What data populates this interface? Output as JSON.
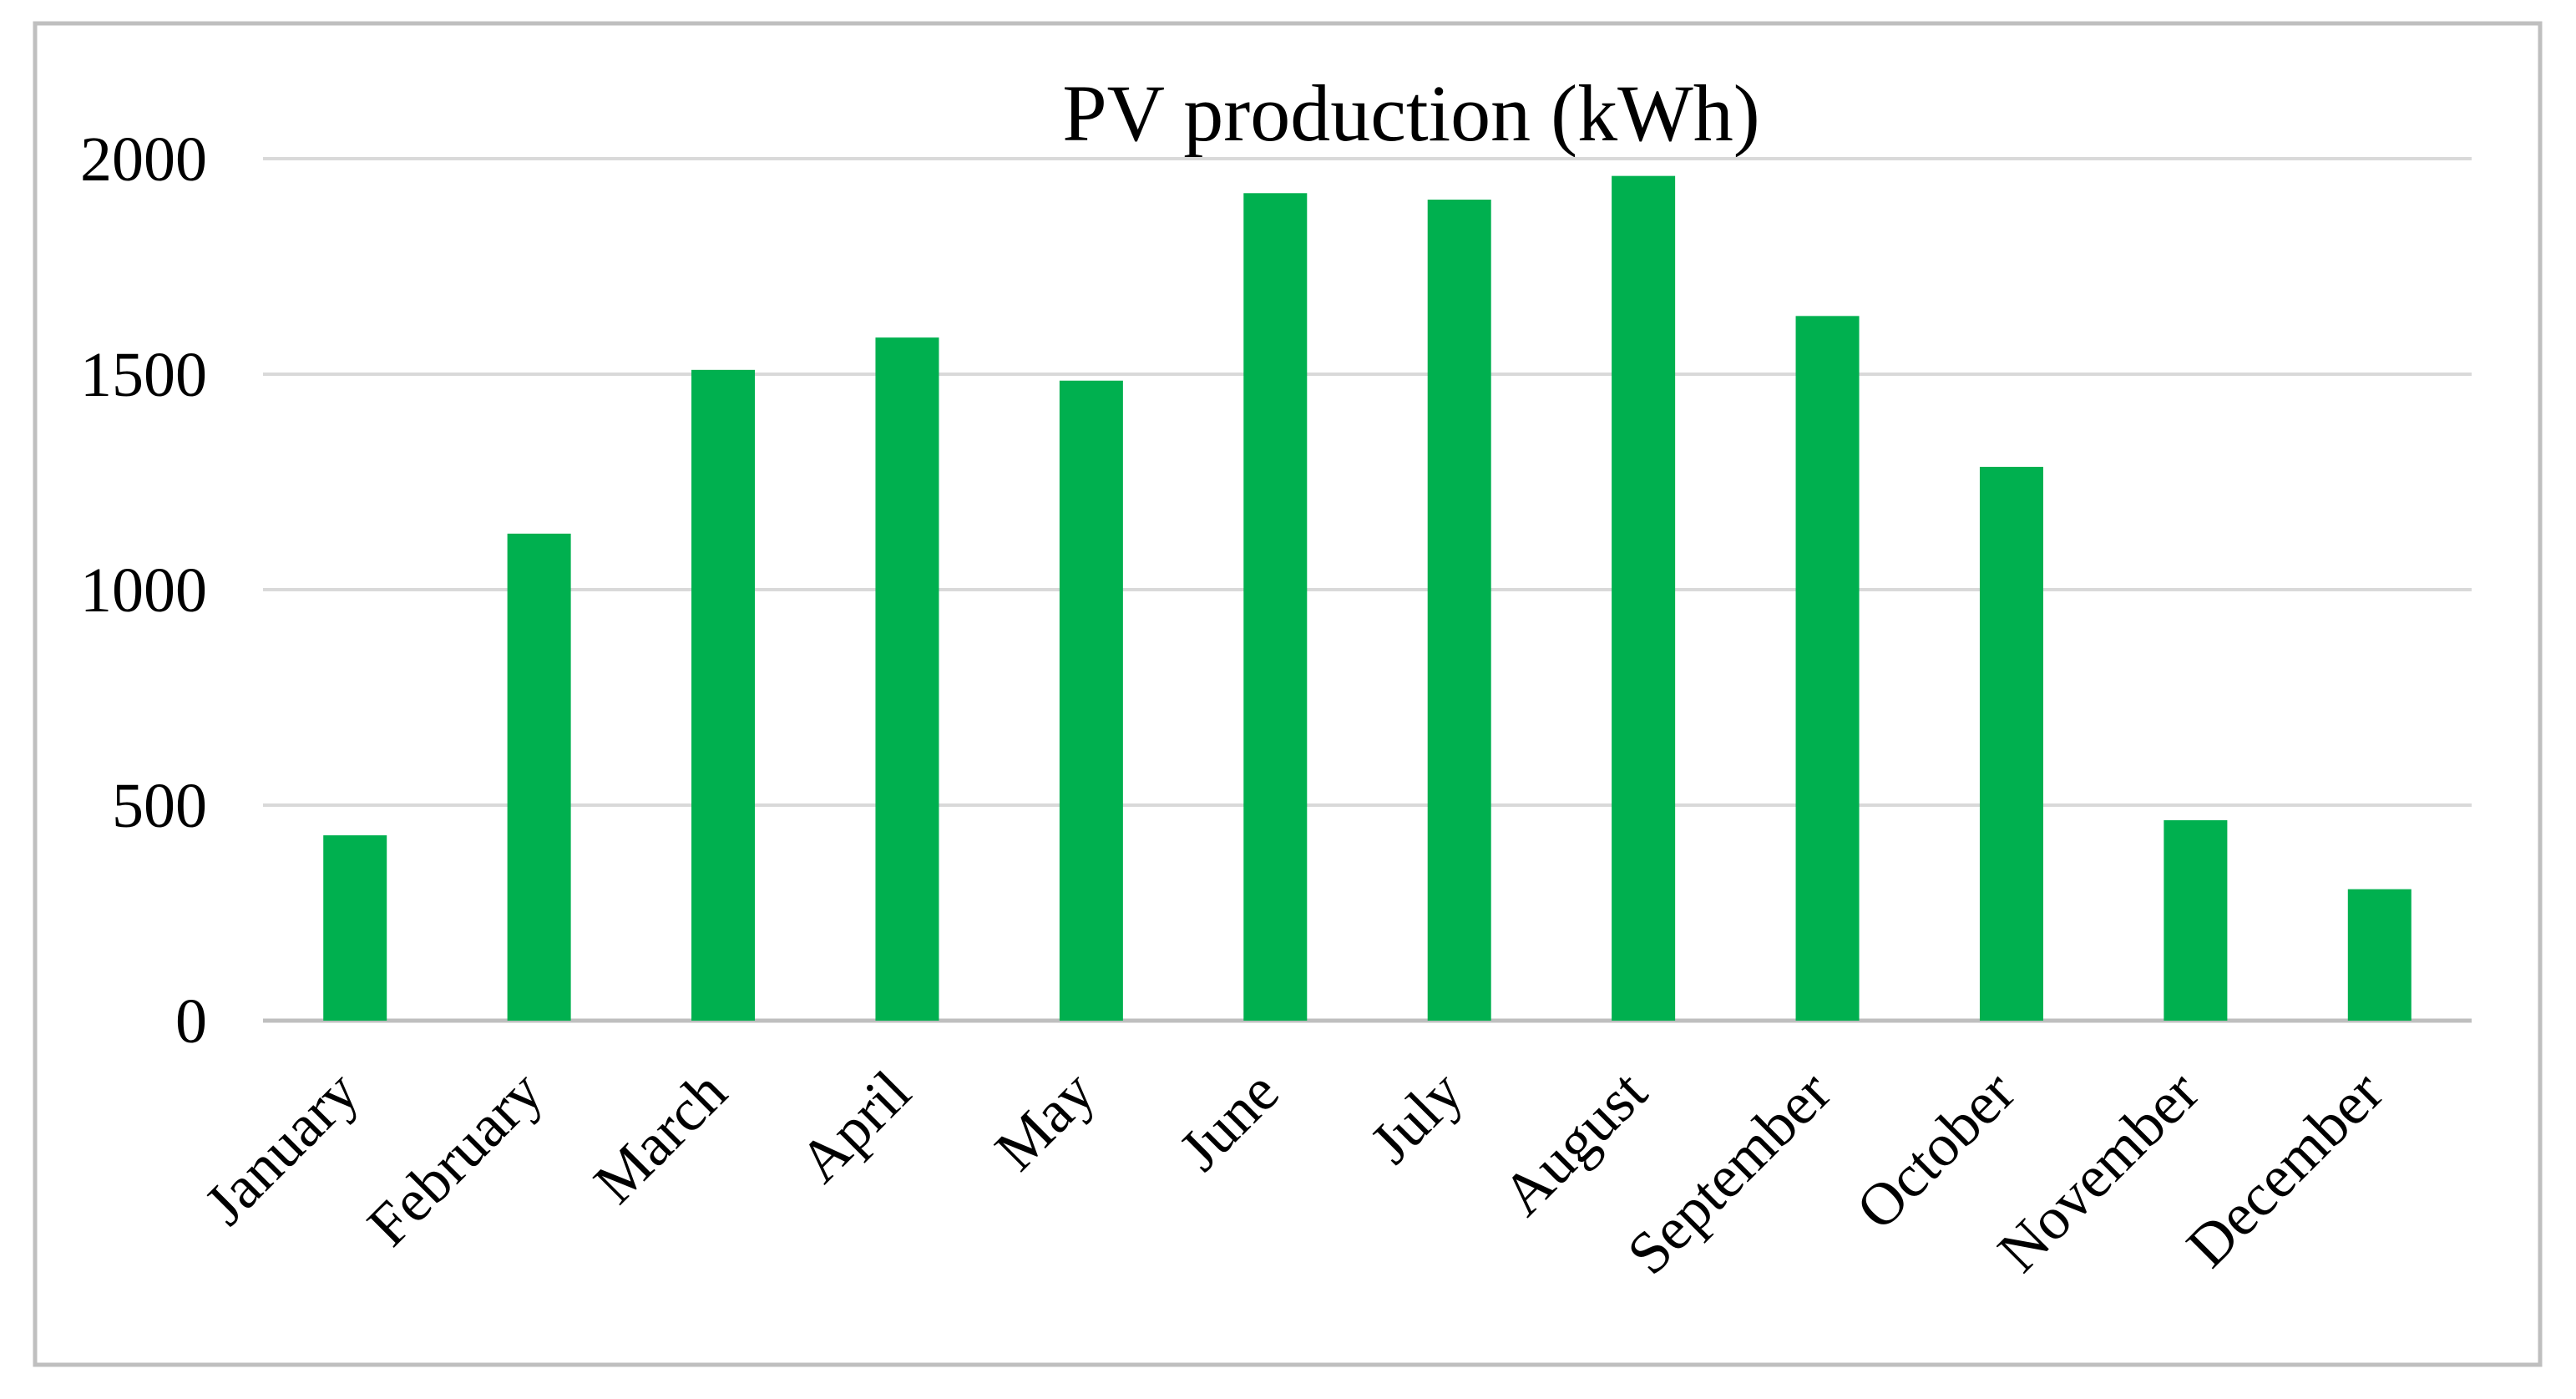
{
  "chart_data": {
    "type": "bar",
    "title": "PV production (kWh)",
    "xlabel": "",
    "ylabel": "",
    "categories": [
      "January",
      "February",
      "March",
      "April",
      "May",
      "June",
      "July",
      "August",
      "September",
      "October",
      "November",
      "December"
    ],
    "values": [
      430,
      1130,
      1510,
      1585,
      1485,
      1920,
      1905,
      1960,
      1635,
      1285,
      465,
      305
    ],
    "ylim": [
      0,
      2000
    ],
    "yticks": [
      0,
      500,
      1000,
      1500,
      2000
    ],
    "grid": true,
    "legend": "none",
    "colors": {
      "bar": "#00b04f",
      "grid": "#d9d9d9",
      "axis": "#bfbfbf",
      "border": "#bfbfbf"
    }
  }
}
